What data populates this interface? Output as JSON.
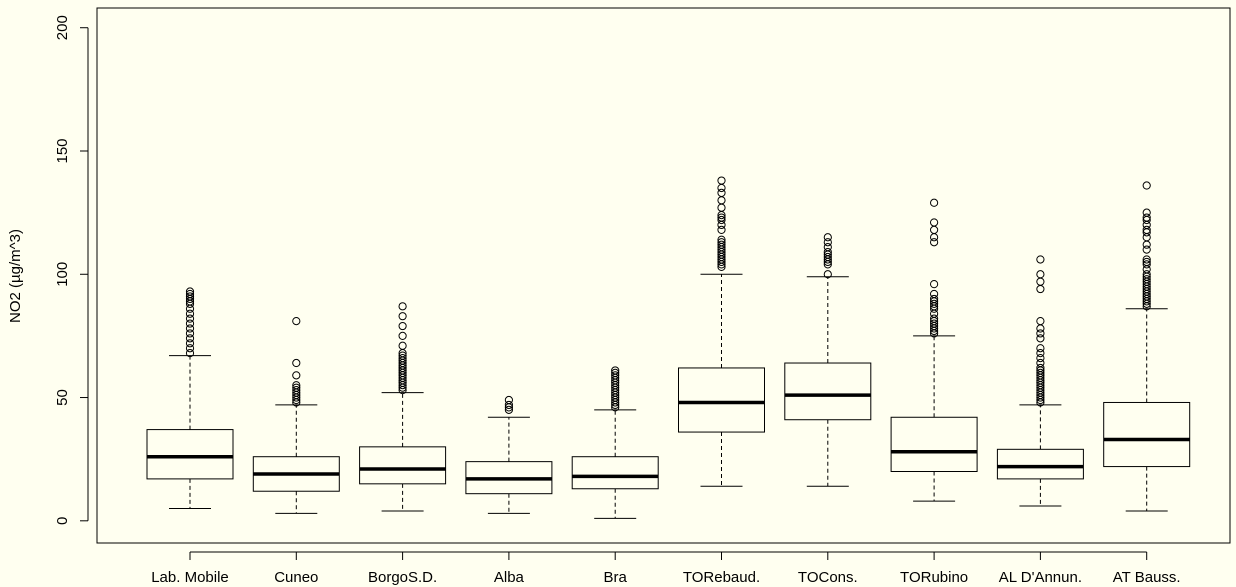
{
  "chart_data": {
    "type": "boxplot",
    "title": "",
    "xlabel": "",
    "ylabel": "NO2 (µg/m^3)",
    "ylim": [
      -9,
      208
    ],
    "yticks": [
      0,
      50,
      100,
      150,
      200
    ],
    "grid": false,
    "legend": "none",
    "colors": {
      "background": "#fffff0",
      "box_fill": "#fffff0",
      "stroke": "#000000"
    },
    "categories": [
      "Lab. Mobile",
      "Cuneo",
      "BorgoS.D.",
      "Alba",
      "Bra",
      "TORebaud.",
      "TOCons.",
      "TORubino",
      "AL D'Annun.",
      "AT Bauss."
    ],
    "boxes": [
      {
        "min": 5,
        "q1": 17,
        "median": 26,
        "q3": 37,
        "max": 67,
        "outliers": [
          68,
          70,
          72,
          74,
          76,
          78,
          80,
          82,
          84,
          86,
          88,
          89,
          90,
          91,
          92,
          93
        ]
      },
      {
        "min": 3,
        "q1": 12,
        "median": 19,
        "q3": 26,
        "max": 47,
        "outliers": [
          48,
          49,
          50,
          51,
          52,
          53,
          54,
          55,
          59,
          64,
          81
        ]
      },
      {
        "min": 4,
        "q1": 15,
        "median": 21,
        "q3": 30,
        "max": 52,
        "outliers": [
          53,
          54,
          55,
          56,
          57,
          58,
          59,
          60,
          61,
          62,
          63,
          64,
          65,
          66,
          67,
          68,
          71,
          75,
          79,
          83,
          87
        ]
      },
      {
        "min": 3,
        "q1": 11,
        "median": 17,
        "q3": 24,
        "max": 42,
        "outliers": [
          45,
          46,
          47,
          49
        ]
      },
      {
        "min": 1,
        "q1": 13,
        "median": 18,
        "q3": 26,
        "max": 45,
        "outliers": [
          46,
          47,
          48,
          49,
          50,
          51,
          52,
          53,
          54,
          55,
          56,
          57,
          58,
          59,
          60,
          61
        ]
      },
      {
        "min": 14,
        "q1": 36,
        "median": 48,
        "q3": 62,
        "max": 100,
        "outliers": [
          103,
          104,
          105,
          106,
          107,
          108,
          109,
          110,
          111,
          112,
          113,
          114,
          118,
          120,
          122,
          123,
          124,
          127,
          130,
          133,
          135,
          138
        ]
      },
      {
        "min": 14,
        "q1": 41,
        "median": 51,
        "q3": 64,
        "max": 99,
        "outliers": [
          100,
          104,
          105,
          106,
          107,
          108,
          109,
          111,
          113,
          115
        ]
      },
      {
        "min": 8,
        "q1": 20,
        "median": 28,
        "q3": 42,
        "max": 75,
        "outliers": [
          76,
          77,
          78,
          79,
          80,
          81,
          82,
          84,
          86,
          87,
          88,
          89,
          90,
          92,
          96,
          113,
          115,
          118,
          121,
          129
        ]
      },
      {
        "min": 6,
        "q1": 17,
        "median": 22,
        "q3": 29,
        "max": 47,
        "outliers": [
          48,
          49,
          50,
          51,
          52,
          53,
          54,
          55,
          56,
          57,
          58,
          59,
          60,
          61,
          62,
          64,
          66,
          68,
          70,
          74,
          76,
          78,
          81,
          94,
          97,
          100,
          106
        ]
      },
      {
        "min": 4,
        "q1": 22,
        "median": 33,
        "q3": 48,
        "max": 86,
        "outliers": [
          87,
          88,
          89,
          90,
          91,
          92,
          93,
          94,
          95,
          96,
          97,
          98,
          99,
          100,
          102,
          104,
          105,
          106,
          110,
          112,
          115,
          117,
          118,
          120,
          122,
          123,
          125,
          136
        ]
      }
    ]
  }
}
